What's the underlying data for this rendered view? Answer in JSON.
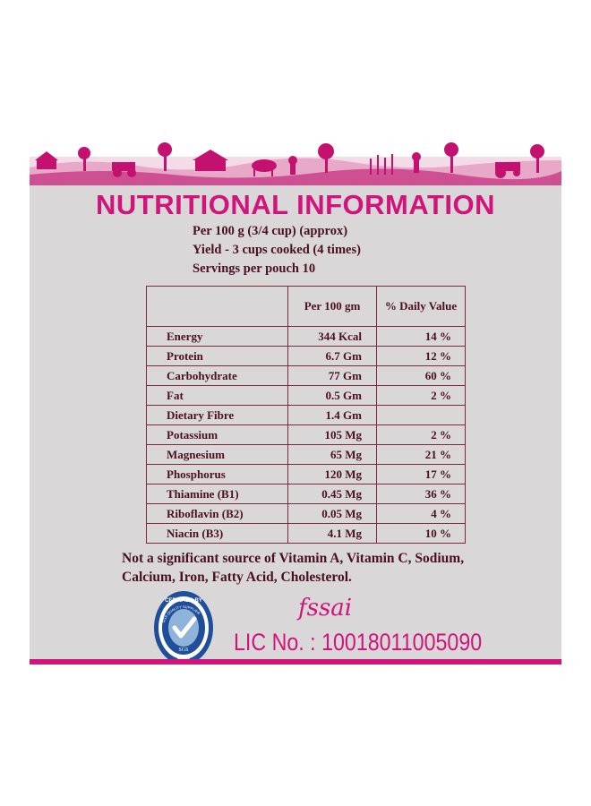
{
  "title": "NUTRITIONAL INFORMATION",
  "intro": {
    "line1": "Per 100 g (3/4 cup) (approx)",
    "line2": "Yield - 3 cups cooked (4 times)",
    "line3": "Servings per pouch 10"
  },
  "table": {
    "headers": [
      "",
      "Per 100 gm",
      "% Daily Value"
    ],
    "rows": [
      {
        "nutrient": "Energy",
        "per100": "344 Kcal",
        "dv": "14 %"
      },
      {
        "nutrient": "Protein",
        "per100": "6.7 Gm",
        "dv": "12 %"
      },
      {
        "nutrient": "Carbohydrate",
        "per100": "77 Gm",
        "dv": "60 %"
      },
      {
        "nutrient": "Fat",
        "per100": "0.5 Gm",
        "dv": "2 %"
      },
      {
        "nutrient": "Dietary Fibre",
        "per100": "1.4 Gm",
        "dv": ""
      },
      {
        "nutrient": "Potassium",
        "per100": "105 Mg",
        "dv": "2 %"
      },
      {
        "nutrient": "Magnesium",
        "per100": "65 Mg",
        "dv": "21 %"
      },
      {
        "nutrient": "Phosphorus",
        "per100": "120 Mg",
        "dv": "17 %"
      },
      {
        "nutrient": "Thiamine (B1)",
        "per100": "0.45 Mg",
        "dv": "36 %"
      },
      {
        "nutrient": "Riboflavin (B2)",
        "per100": "0.05 Mg",
        "dv": "4 %"
      },
      {
        "nutrient": "Niacin (B3)",
        "per100": "4.1 Mg",
        "dv": "10 %"
      }
    ]
  },
  "note": {
    "line1": "Not a significant source of Vitamin A, Vitamin C, Sodium,",
    "line2": "Calcium, Iron, Fatty Acid, Cholesterol."
  },
  "sgs_seal": {
    "top_text": "CERTIFIED BY",
    "ring_text": "SGS QUALITY SUPPLIER",
    "brand": "SGS",
    "code": "10016"
  },
  "fssai": "fssai",
  "license": "LIC No. : 10018011005090",
  "colors": {
    "accent": "#d1147c",
    "panel": "#d9d7d8",
    "text": "#4a1020",
    "border": "#7a2a3a",
    "seal": "#1f4e9a"
  }
}
